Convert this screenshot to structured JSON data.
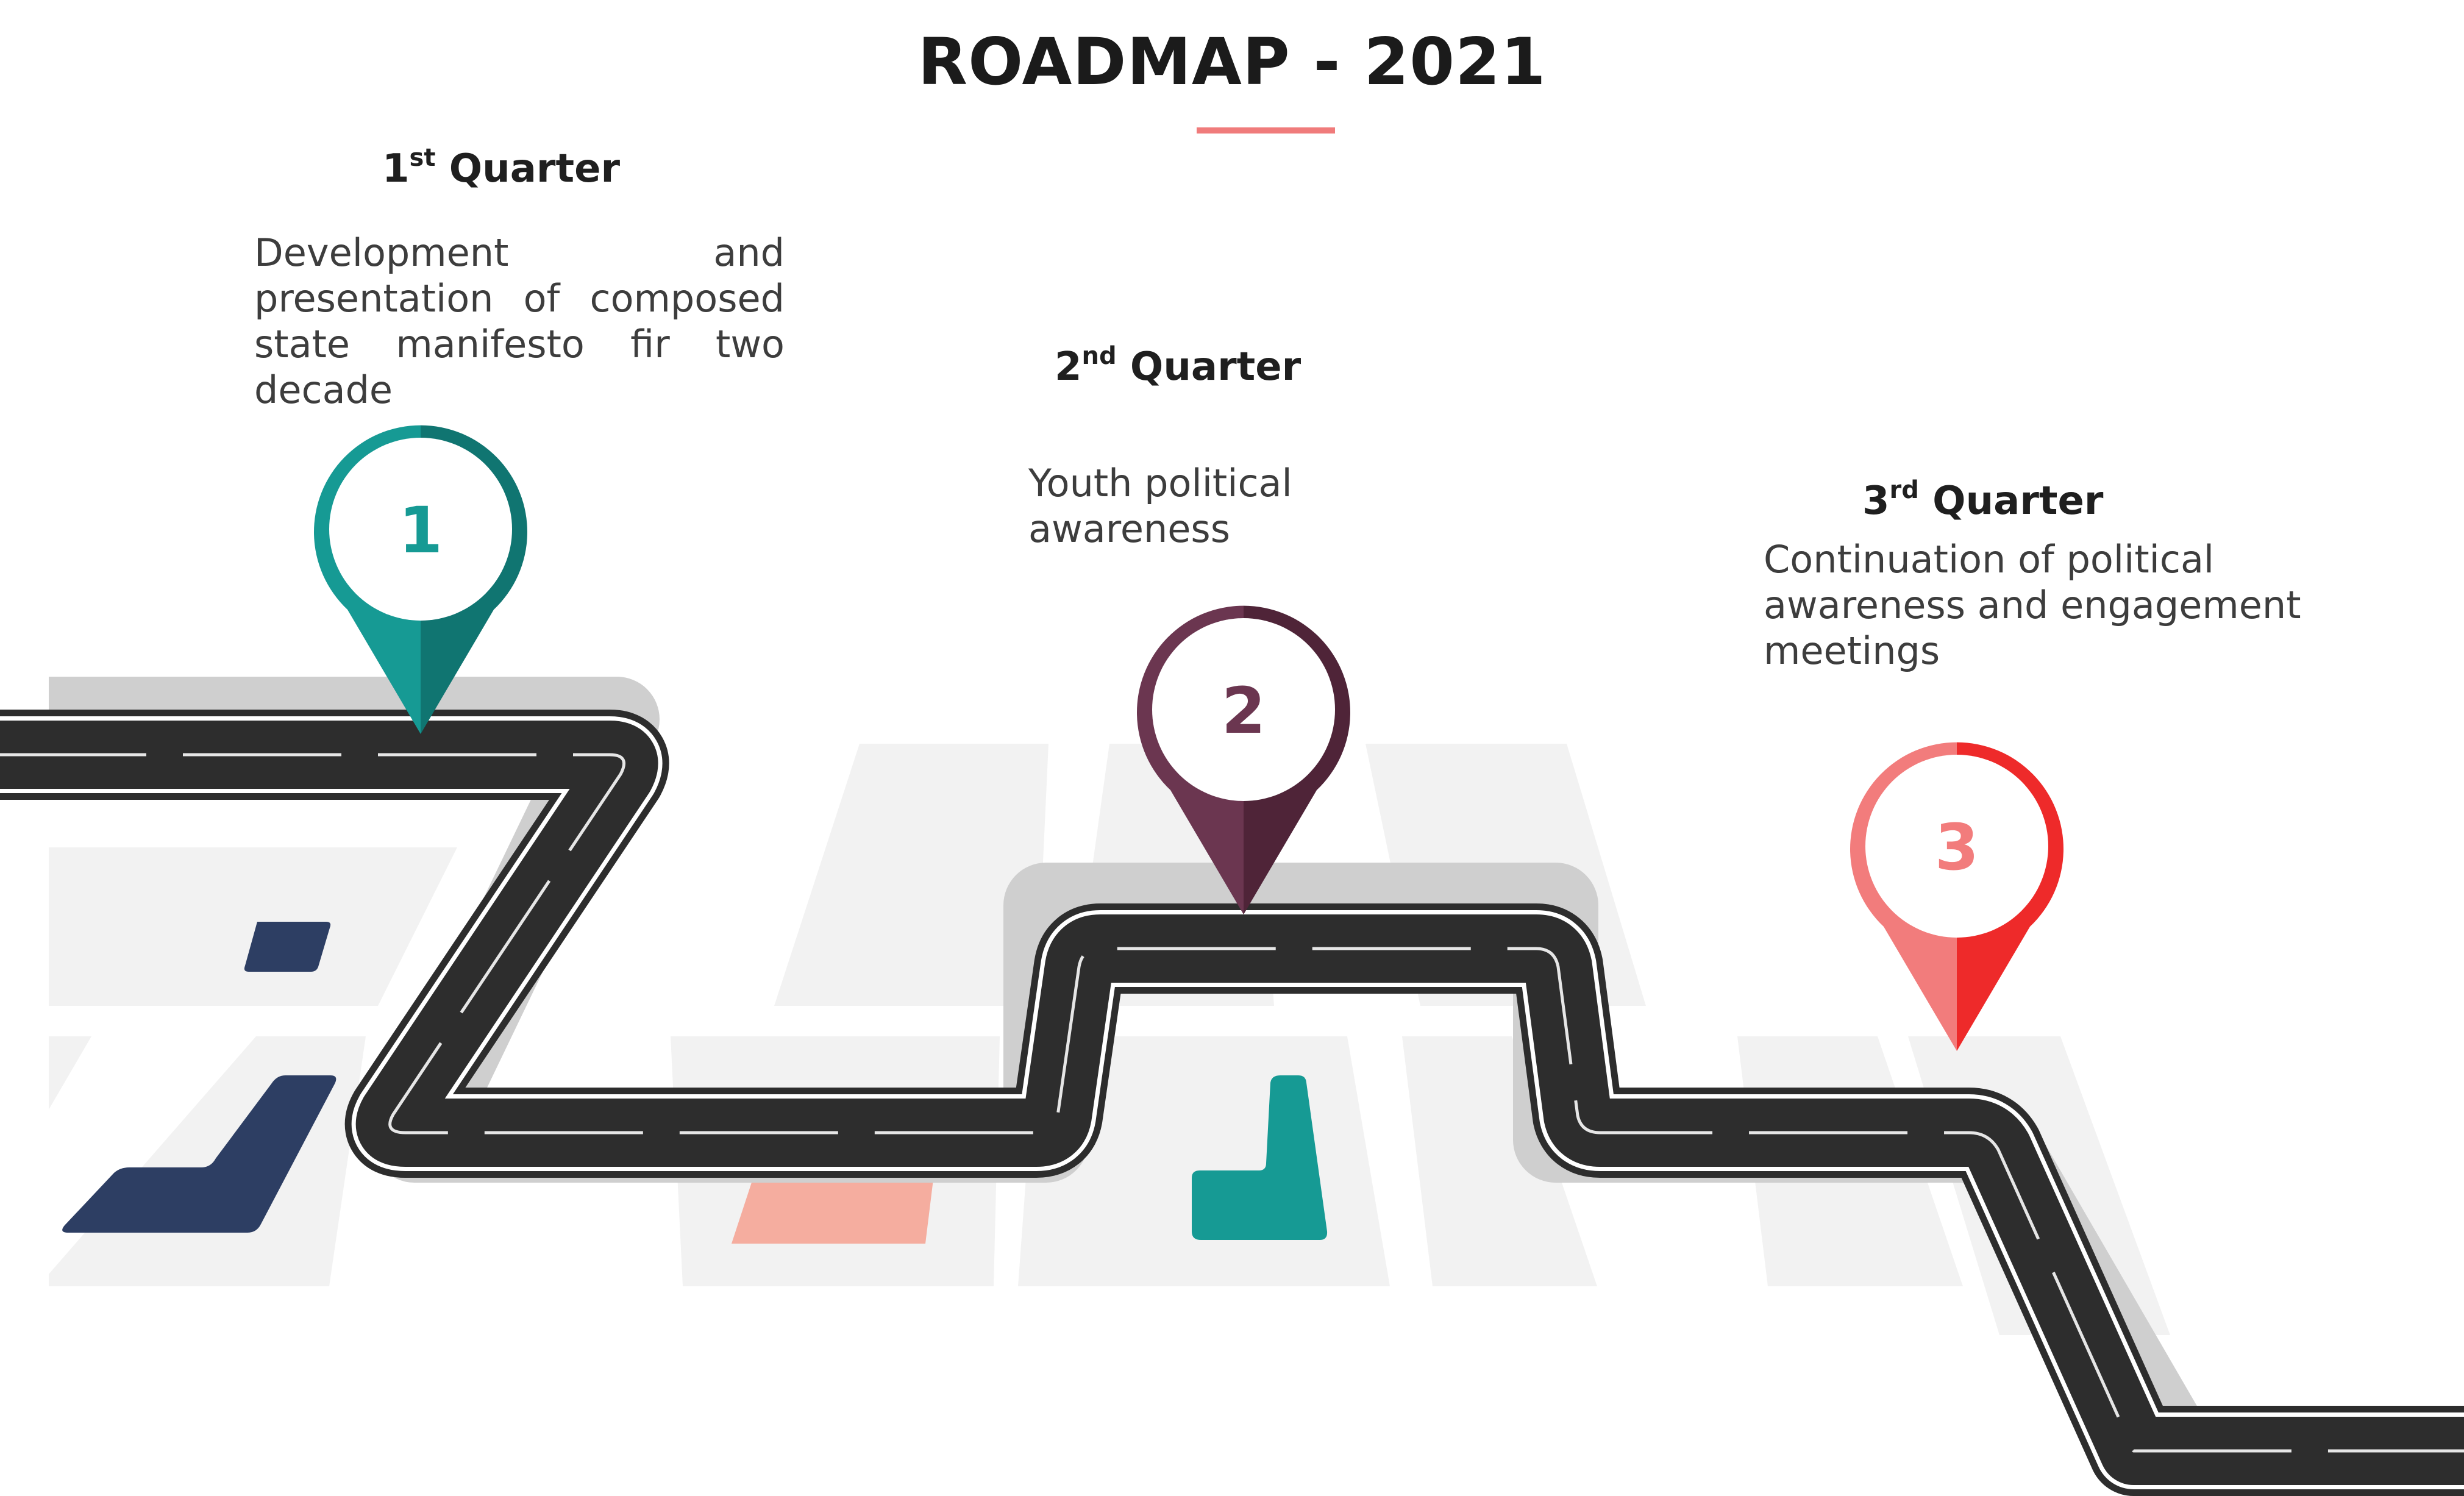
{
  "title": "ROADMAP - 2021",
  "colors": {
    "accent_rule": "#f07b7b",
    "pin1": "#169a94",
    "pin2": "#6b3650",
    "pin3": "#f27c7c",
    "road": "#2d2d2d",
    "road_shadow": "#cfcfcf",
    "tile_light": "#f2f2f2",
    "tile_navy": "#2d3e63",
    "tile_salmon": "#f5ad9f",
    "tile_teal": "#169a94"
  },
  "milestones": [
    {
      "number": "1",
      "heading_ordinal": "1",
      "heading_suffix": "st",
      "heading_word": "Quarter",
      "description": "Development and presentation of composed state manifesto fir two decade"
    },
    {
      "number": "2",
      "heading_ordinal": "2",
      "heading_suffix": "nd",
      "heading_word": "Quarter",
      "description_lines": [
        "Youth political",
        "awareness"
      ]
    },
    {
      "number": "3",
      "heading_ordinal": "3",
      "heading_suffix": "rd",
      "heading_word": "Quarter",
      "description_lines": [
        "Continuation of political",
        "awareness and engagement",
        "meetings"
      ]
    }
  ]
}
